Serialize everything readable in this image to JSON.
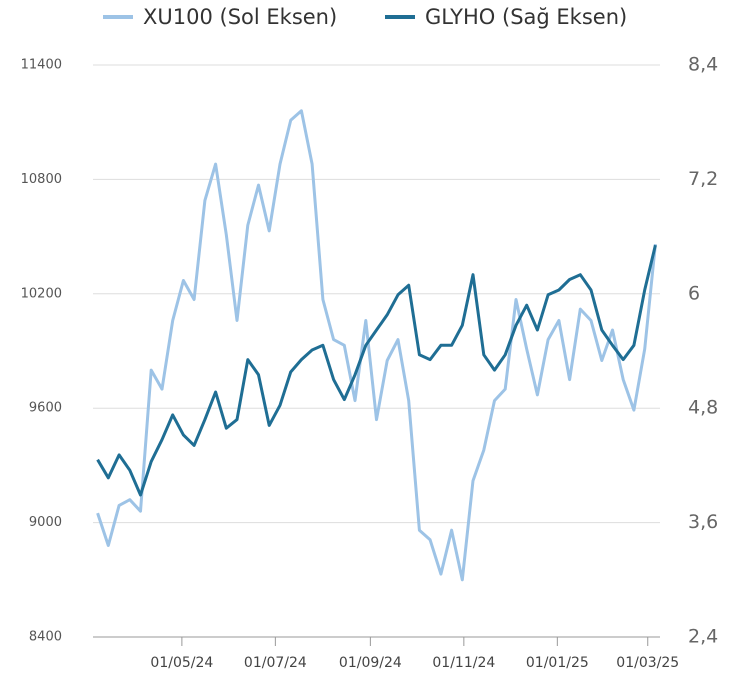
{
  "chart_data": {
    "type": "line",
    "x": [
      "07/03/24",
      "14/03/24",
      "21/03/24",
      "28/03/24",
      "04/04/24",
      "11/04/24",
      "18/04/24",
      "25/04/24",
      "02/05/24",
      "09/05/24",
      "16/05/24",
      "23/05/24",
      "30/05/24",
      "06/06/24",
      "13/06/24",
      "20/06/24",
      "27/06/24",
      "04/07/24",
      "11/07/24",
      "18/07/24",
      "25/07/24",
      "01/08/24",
      "08/08/24",
      "15/08/24",
      "22/08/24",
      "29/08/24",
      "05/09/24",
      "12/09/24",
      "19/09/24",
      "26/09/24",
      "03/10/24",
      "10/10/24",
      "17/10/24",
      "24/10/24",
      "31/10/24",
      "07/11/24",
      "14/11/24",
      "21/11/24",
      "28/11/24",
      "05/12/24",
      "12/12/24",
      "19/12/24",
      "26/12/24",
      "02/01/25",
      "09/01/25",
      "16/01/25",
      "23/01/25",
      "30/01/25",
      "06/02/25",
      "13/02/25",
      "20/02/25",
      "27/02/25",
      "06/03/25"
    ],
    "series": [
      {
        "name": "XU100 (Sol Eksen)",
        "color": "#9dc3e6",
        "axis": "y",
        "values": [
          9050,
          8880,
          9090,
          9120,
          9060,
          9800,
          9700,
          10060,
          10270,
          10170,
          10690,
          10880,
          10510,
          10060,
          10560,
          10770,
          10530,
          10880,
          11110,
          11160,
          10880,
          10170,
          9960,
          9930,
          9640,
          10060,
          9540,
          9850,
          9960,
          9640,
          8960,
          8910,
          8730,
          8960,
          8700,
          9220,
          9380,
          9640,
          9700,
          10170,
          9910,
          9670,
          9960,
          10060,
          9750,
          10120,
          10060,
          9850,
          10010,
          9750,
          9590,
          9910,
          10460
        ]
      },
      {
        "name": "GLYHO (Sağ Eksen)",
        "color": "#1f6e94",
        "axis": "y2",
        "values": [
          4.26,
          4.07,
          4.31,
          4.15,
          3.89,
          4.24,
          4.47,
          4.73,
          4.52,
          4.41,
          4.68,
          4.97,
          4.59,
          4.68,
          5.31,
          5.15,
          4.62,
          4.83,
          5.18,
          5.31,
          5.41,
          5.46,
          5.1,
          4.89,
          5.15,
          5.46,
          5.62,
          5.78,
          5.99,
          6.09,
          5.36,
          5.31,
          5.46,
          5.46,
          5.67,
          6.2,
          5.36,
          5.2,
          5.36,
          5.67,
          5.88,
          5.62,
          5.99,
          6.04,
          6.15,
          6.2,
          6.04,
          5.62,
          5.46,
          5.31,
          5.46,
          6.04,
          6.51
        ]
      }
    ],
    "xlim": [
      "04/03/24",
      "09/03/25"
    ],
    "xticks": [
      "01/05/24",
      "01/07/24",
      "01/09/24",
      "01/11/24",
      "01/01/25",
      "01/03/25"
    ],
    "ylim": [
      8400,
      11400
    ],
    "yticks": [
      8400,
      9000,
      9600,
      10200,
      10800,
      11400
    ],
    "y2lim": [
      2.4,
      8.4
    ],
    "y2ticks": [
      {
        "value": 2.4,
        "label": "2,4"
      },
      {
        "value": 3.6,
        "label": "3,6"
      },
      {
        "value": 4.8,
        "label": "4,8"
      },
      6,
      {
        "value": 7.2,
        "label": "7,2"
      },
      {
        "value": 8.4,
        "label": "8,4"
      }
    ],
    "grid": true,
    "legend": "top"
  }
}
